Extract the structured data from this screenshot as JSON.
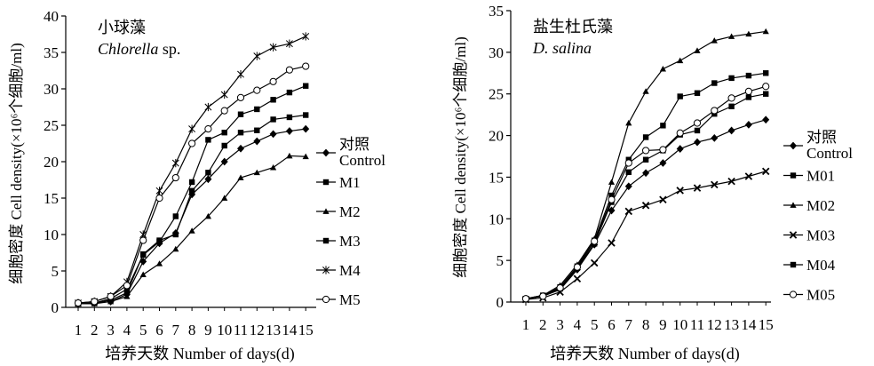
{
  "chart_data": [
    {
      "type": "line",
      "title_cn": "小球藻",
      "title_species": "Chlorella",
      "title_suffix": " sp.",
      "xlabel": "培养天数 Number of days(d)",
      "ylabel": "细胞密度 Cell density(×10⁶个细胞/ml)",
      "x": [
        1,
        2,
        3,
        4,
        5,
        6,
        7,
        8,
        9,
        10,
        11,
        12,
        13,
        14,
        15
      ],
      "ylim": [
        0,
        40
      ],
      "yticks": [
        0,
        5,
        10,
        15,
        20,
        25,
        30,
        35,
        40
      ],
      "grid": false,
      "legend_position": "right",
      "series": [
        {
          "name": "对照\nControl",
          "marker": "diamond",
          "values": [
            0.5,
            0.6,
            0.8,
            1.8,
            6.3,
            8.8,
            10.2,
            15.5,
            17.6,
            20.0,
            21.8,
            22.8,
            23.8,
            24.2,
            24.5
          ]
        },
        {
          "name": "M1",
          "marker": "square",
          "values": [
            0.5,
            0.6,
            1.2,
            2.5,
            7.2,
            9.0,
            12.5,
            17.2,
            23.0,
            24.0,
            26.5,
            27.2,
            28.5,
            29.5,
            30.4
          ]
        },
        {
          "name": "M2",
          "marker": "triangle",
          "values": [
            0.5,
            0.5,
            0.8,
            1.5,
            4.5,
            6.0,
            8.0,
            10.5,
            12.5,
            15.0,
            17.8,
            18.5,
            19.2,
            20.8,
            20.7
          ]
        },
        {
          "name": "M3",
          "marker": "square",
          "values": [
            0.5,
            0.6,
            1.0,
            2.0,
            7.3,
            9.2,
            10.0,
            16.0,
            18.5,
            22.2,
            24.0,
            24.3,
            25.8,
            26.1,
            26.4
          ]
        },
        {
          "name": "M4",
          "marker": "star",
          "values": [
            0.6,
            0.8,
            1.5,
            3.5,
            10.0,
            16.0,
            19.8,
            24.5,
            27.5,
            29.2,
            32.0,
            34.5,
            35.7,
            36.2,
            37.2
          ]
        },
        {
          "name": "M5",
          "marker": "circle",
          "values": [
            0.6,
            0.8,
            1.5,
            3.0,
            9.2,
            15.0,
            17.8,
            22.5,
            24.5,
            27.0,
            28.8,
            29.8,
            31.0,
            32.6,
            33.1
          ]
        }
      ]
    },
    {
      "type": "line",
      "title_cn": "盐生杜氏藻",
      "title_species": "D. salina",
      "title_suffix": "",
      "xlabel": "培养天数 Number of days(d)",
      "ylabel": "细胞密度 Cell density(×10⁶个细胞/ml)",
      "x": [
        1,
        2,
        3,
        4,
        5,
        6,
        7,
        8,
        9,
        10,
        11,
        12,
        13,
        14,
        15
      ],
      "ylim": [
        0,
        35
      ],
      "yticks": [
        0,
        5,
        10,
        15,
        20,
        25,
        30,
        35
      ],
      "grid": false,
      "legend_position": "right",
      "series": [
        {
          "name": "对照\nControl",
          "marker": "diamond",
          "values": [
            0.4,
            0.7,
            1.5,
            3.9,
            6.9,
            11.0,
            13.9,
            15.5,
            16.7,
            18.4,
            19.2,
            19.7,
            20.6,
            21.3,
            21.9
          ]
        },
        {
          "name": "M01",
          "marker": "square",
          "values": [
            0.4,
            0.7,
            1.6,
            4.1,
            7.0,
            12.0,
            15.6,
            17.1,
            18.2,
            20.1,
            20.6,
            22.6,
            23.5,
            24.6,
            25.0
          ]
        },
        {
          "name": "M02",
          "marker": "triangle",
          "values": [
            0.4,
            0.8,
            2.0,
            4.5,
            7.6,
            14.4,
            21.5,
            25.3,
            28.0,
            29.0,
            30.2,
            31.4,
            31.9,
            32.2,
            32.5
          ]
        },
        {
          "name": "M03",
          "marker": "asterisk",
          "values": [
            0.3,
            0.5,
            1.2,
            2.8,
            4.7,
            7.1,
            10.9,
            11.6,
            12.3,
            13.4,
            13.7,
            14.1,
            14.5,
            15.1,
            15.7
          ]
        },
        {
          "name": "M04",
          "marker": "square",
          "values": [
            0.4,
            0.8,
            1.8,
            4.3,
            7.4,
            12.8,
            17.1,
            19.8,
            21.2,
            24.7,
            25.1,
            26.3,
            26.9,
            27.2,
            27.5
          ]
        },
        {
          "name": "M05",
          "marker": "circle",
          "values": [
            0.4,
            0.7,
            1.7,
            4.2,
            7.3,
            12.3,
            16.7,
            18.2,
            18.3,
            20.3,
            21.5,
            23.0,
            24.5,
            25.3,
            25.9
          ]
        }
      ]
    }
  ]
}
